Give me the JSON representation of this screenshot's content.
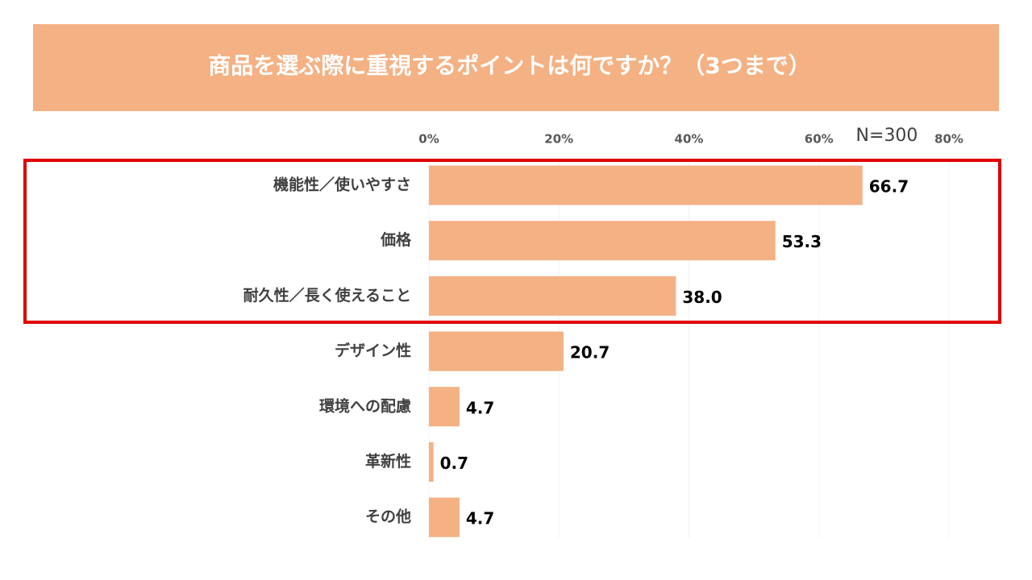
{
  "chart_data": {
    "type": "bar",
    "orientation": "horizontal",
    "title": "商品を選ぶ際に重視するポイントは何ですか？（3つまで）",
    "annotation": "N=300",
    "categories": [
      "機能性／使いやすさ",
      "価格",
      "耐久性／長く使えること",
      "デザイン性",
      "環境への配慮",
      "革新性",
      "その他"
    ],
    "values": [
      66.7,
      53.3,
      38.0,
      20.7,
      4.7,
      0.7,
      4.7
    ],
    "value_labels": [
      "66.7",
      "53.3",
      "38.0",
      "20.7",
      "4.7",
      "0.7",
      "4.7"
    ],
    "color": "#f4b183",
    "xlim": [
      0,
      80
    ],
    "xticks": [
      {
        "value": 0,
        "label": "0%"
      },
      {
        "value": 20,
        "label": "20%"
      },
      {
        "value": 40,
        "label": "40%"
      },
      {
        "value": 60,
        "label": "60%"
      },
      {
        "value": 80,
        "label": "80%"
      }
    ],
    "grid": true
  }
}
